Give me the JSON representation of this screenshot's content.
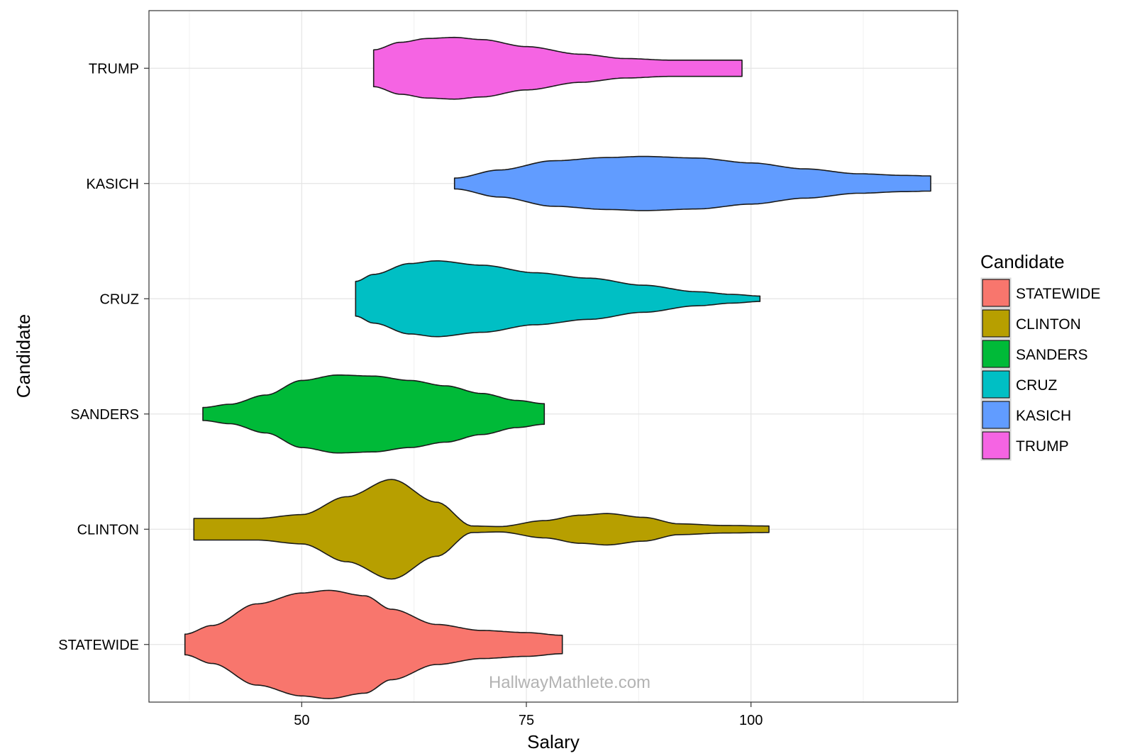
{
  "chart_data": {
    "type": "violin",
    "orientation": "horizontal",
    "xlabel": "Salary",
    "ylabel": "Candidate",
    "xlim": [
      33,
      123
    ],
    "x_ticks": [
      50,
      75,
      100
    ],
    "grid": true,
    "legend": {
      "title": "Candidate",
      "placement": "right",
      "entries": [
        "STATEWIDE",
        "CLINTON",
        "SANDERS",
        "CRUZ",
        "KASICH",
        "TRUMP"
      ]
    },
    "categories": [
      "STATEWIDE",
      "CLINTON",
      "SANDERS",
      "CRUZ",
      "KASICH",
      "TRUMP"
    ],
    "series": [
      {
        "name": "STATEWIDE",
        "color": "#F8766D",
        "min": 37,
        "max": 79,
        "profile": [
          [
            37,
            0.19
          ],
          [
            40,
            0.35
          ],
          [
            45,
            0.75
          ],
          [
            50,
            0.95
          ],
          [
            53,
            1.0
          ],
          [
            57,
            0.9
          ],
          [
            60,
            0.65
          ],
          [
            65,
            0.37
          ],
          [
            70,
            0.26
          ],
          [
            75,
            0.22
          ],
          [
            79,
            0.17
          ]
        ]
      },
      {
        "name": "CLINTON",
        "color": "#B79F00",
        "min": 38,
        "max": 102,
        "profile": [
          [
            38,
            0.2
          ],
          [
            45,
            0.2
          ],
          [
            50,
            0.27
          ],
          [
            55,
            0.6
          ],
          [
            60,
            0.92
          ],
          [
            65,
            0.5
          ],
          [
            69,
            0.06
          ],
          [
            72,
            0.05
          ],
          [
            77,
            0.16
          ],
          [
            81,
            0.26
          ],
          [
            84,
            0.29
          ],
          [
            88,
            0.22
          ],
          [
            92,
            0.1
          ],
          [
            97,
            0.07
          ],
          [
            102,
            0.06
          ]
        ]
      },
      {
        "name": "SANDERS",
        "color": "#00BA38",
        "min": 39,
        "max": 77,
        "profile": [
          [
            39,
            0.12
          ],
          [
            42,
            0.18
          ],
          [
            46,
            0.35
          ],
          [
            50,
            0.62
          ],
          [
            54,
            0.72
          ],
          [
            58,
            0.7
          ],
          [
            62,
            0.62
          ],
          [
            66,
            0.52
          ],
          [
            70,
            0.38
          ],
          [
            74,
            0.25
          ],
          [
            77,
            0.19
          ]
        ]
      },
      {
        "name": "CRUZ",
        "color": "#00BFC4",
        "min": 56,
        "max": 101,
        "profile": [
          [
            56,
            0.32
          ],
          [
            58,
            0.45
          ],
          [
            62,
            0.65
          ],
          [
            65,
            0.7
          ],
          [
            70,
            0.62
          ],
          [
            76,
            0.48
          ],
          [
            82,
            0.38
          ],
          [
            88,
            0.25
          ],
          [
            94,
            0.13
          ],
          [
            98,
            0.08
          ],
          [
            101,
            0.05
          ]
        ]
      },
      {
        "name": "KASICH",
        "color": "#619CFF",
        "min": 67,
        "max": 120,
        "profile": [
          [
            67,
            0.1
          ],
          [
            72,
            0.25
          ],
          [
            78,
            0.42
          ],
          [
            84,
            0.48
          ],
          [
            88,
            0.5
          ],
          [
            94,
            0.47
          ],
          [
            100,
            0.38
          ],
          [
            106,
            0.27
          ],
          [
            112,
            0.18
          ],
          [
            117,
            0.15
          ],
          [
            120,
            0.14
          ]
        ]
      },
      {
        "name": "TRUMP",
        "color": "#F564E3",
        "min": 58,
        "max": 99,
        "profile": [
          [
            58,
            0.34
          ],
          [
            61,
            0.48
          ],
          [
            64,
            0.55
          ],
          [
            67,
            0.57
          ],
          [
            70,
            0.53
          ],
          [
            75,
            0.4
          ],
          [
            81,
            0.26
          ],
          [
            86,
            0.18
          ],
          [
            91,
            0.15
          ],
          [
            96,
            0.15
          ],
          [
            99,
            0.15
          ]
        ]
      }
    ]
  },
  "watermark": "HallwayMathlete.com"
}
